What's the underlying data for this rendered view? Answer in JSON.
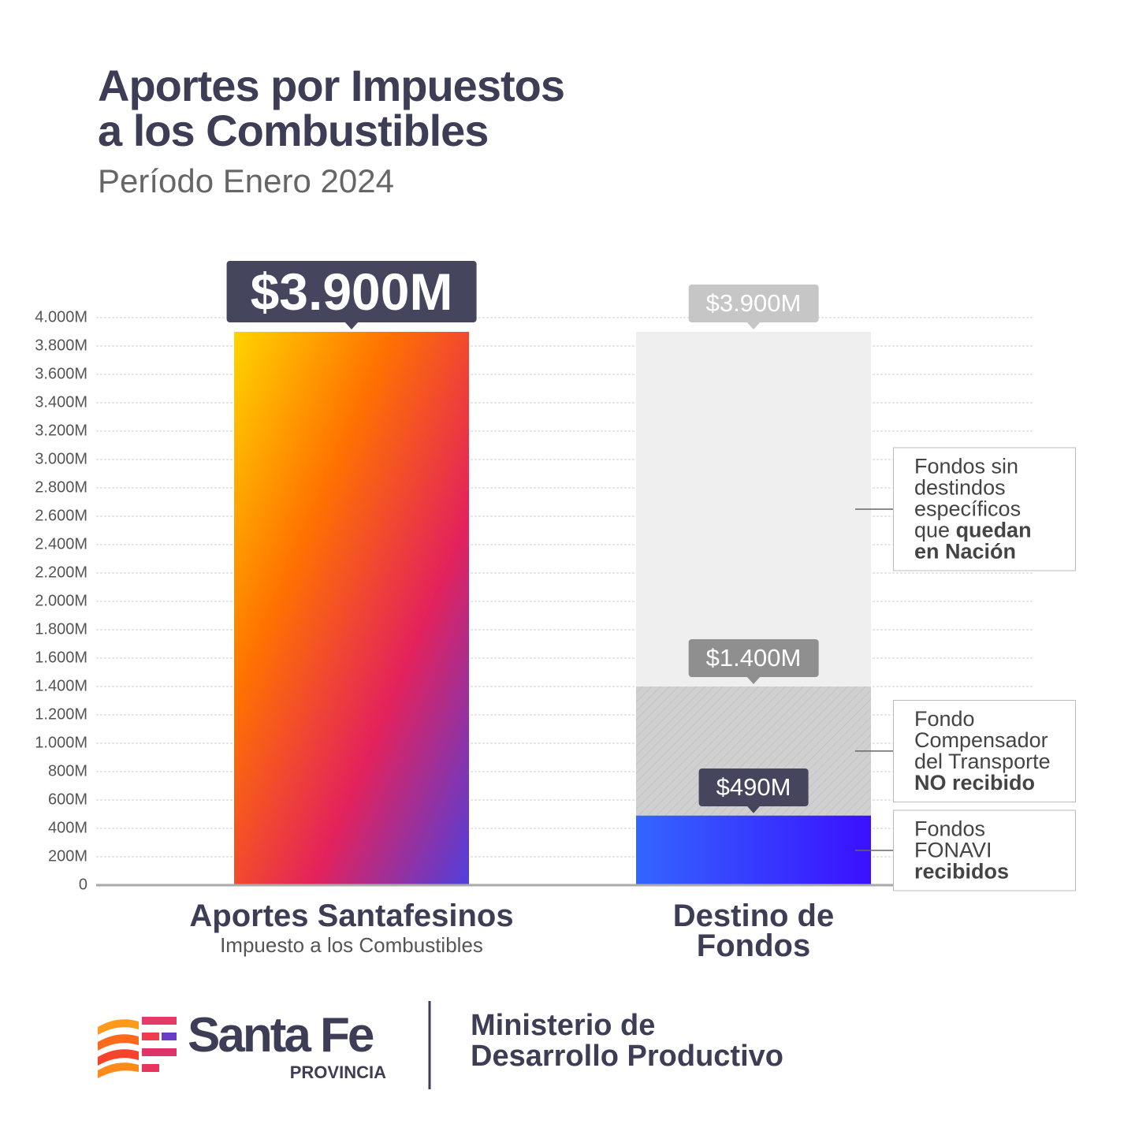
{
  "chart_data": {
    "type": "bar",
    "title": [
      "Aportes por Impuestos",
      "a los Combustibles"
    ],
    "subtitle": "Período Enero 2024",
    "categories": [
      "Aportes Santafesinos",
      "Destino de Fondos"
    ],
    "category_sublabel": "Impuesto a los Combustibles",
    "values": [
      3900,
      3900
    ],
    "value_labels": [
      "$3.900M",
      "$3.900M"
    ],
    "colors": [
      [
        "#ffd400",
        "#ff7200",
        "#e3225c",
        "#4f3fdc"
      ],
      "#efefef"
    ],
    "label_colors": [
      "#45455e",
      "#c6c6c6"
    ],
    "layers": [
      {
        "value": 1400,
        "value_label": "$1.400M",
        "color": "#cfcfcf",
        "label_color": "#8f8f8f"
      },
      {
        "value": 490,
        "value_label": "$490M",
        "color": [
          "#3366ff",
          "#3a10ff"
        ],
        "label_color": "#45455e"
      }
    ],
    "annotations": [
      {
        "text": [
          "Fondos sin destindos específicos que ",
          "quedan en Nación"
        ]
      },
      {
        "text": [
          "Fondo Compensador del Transporte ",
          "NO recibido"
        ]
      },
      {
        "text": [
          "Fondos FONAVI ",
          "recibidos"
        ]
      }
    ],
    "ylim": [
      0,
      4000
    ],
    "yticks": [
      0,
      {
        "value": 200,
        "label": "200M"
      },
      {
        "value": 400,
        "label": "400M"
      },
      {
        "value": 600,
        "label": "600M"
      },
      {
        "value": 800,
        "label": "800M"
      },
      {
        "value": 1000,
        "label": "1.000M"
      },
      {
        "value": 1200,
        "label": "1.200M"
      },
      {
        "value": 1400,
        "label": "1.400M"
      },
      {
        "value": 1600,
        "label": "1.600M"
      },
      {
        "value": 1800,
        "label": "1.800M"
      },
      {
        "value": 2000,
        "label": "2.000M"
      },
      {
        "value": 2200,
        "label": "2.200M"
      },
      {
        "value": 2400,
        "label": "2.400M"
      },
      {
        "value": 2600,
        "label": "2.600M"
      },
      {
        "value": 2800,
        "label": "2.800M"
      },
      {
        "value": 3000,
        "label": "3.000M"
      },
      {
        "value": 3200,
        "label": "3.200M"
      },
      {
        "value": 3400,
        "label": "3.400M"
      },
      {
        "value": 3600,
        "label": "3.600M"
      },
      {
        "value": 3800,
        "label": "3.800M"
      },
      {
        "value": 4000,
        "label": "4.000M"
      }
    ],
    "grid": true
  },
  "footer": {
    "brand": "Santa Fe",
    "brand_sub": "PROVINCIA",
    "ministry": [
      "Ministerio de",
      "Desarrollo Productivo"
    ]
  }
}
